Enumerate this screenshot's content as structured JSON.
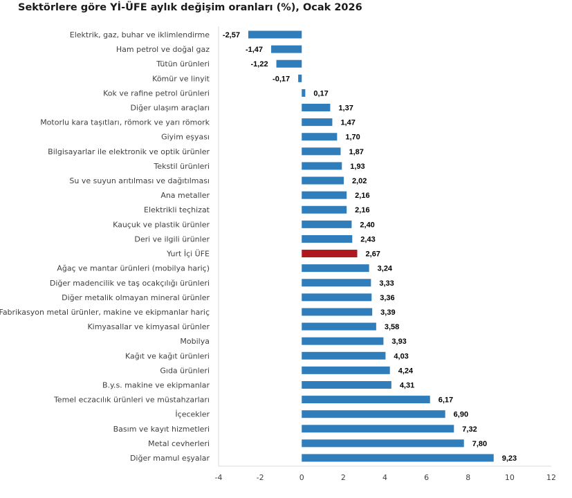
{
  "chart_data": {
    "type": "bar",
    "orientation": "horizontal",
    "title": "Sektörlere göre Yİ-ÜFE aylık değişim oranları (%), Ocak 2026",
    "xlabel": "",
    "ylabel": "",
    "xlim": [
      -4,
      12
    ],
    "xticks": [
      "-4",
      "-2",
      "0",
      "2",
      "4",
      "6",
      "8",
      "10",
      "12"
    ],
    "xtick_values": [
      -4,
      -2,
      0,
      2,
      4,
      6,
      8,
      10,
      12
    ],
    "grid": false,
    "legend": "none",
    "colors": {
      "default": "#2f7dba",
      "highlight": "#b01820"
    },
    "highlight_category": "Yurt İçi ÜFE",
    "categories": [
      "Elektrik, gaz, buhar ve iklimlendirme",
      "Ham petrol ve doğal gaz",
      "Tütün ürünleri",
      "Kömür ve linyit",
      "Kok ve rafine petrol ürünleri",
      "Diğer ulaşım araçları",
      "Motorlu kara taşıtları, römork ve yarı römork",
      "Giyim eşyası",
      "Bilgisayarlar ile elektronik ve optik ürünler",
      "Tekstil ürünleri",
      "Su ve suyun arıtılması ve dağıtılması",
      "Ana metaller",
      "Elektrikli teçhizat",
      "Kauçuk ve plastik ürünler",
      "Deri ve ilgili ürünler",
      "Yurt İçi ÜFE",
      "Ağaç ve mantar ürünleri (mobilya hariç)",
      "Diğer madencilik ve taş ocakçılığı ürünleri",
      "Diğer metalik olmayan mineral ürünler",
      "Fabrikasyon metal ürünler, makine ve ekipmanlar hariç",
      "Kimyasallar ve kimyasal ürünler",
      "Mobilya",
      "Kağıt ve kağıt ürünleri",
      "Gıda ürünleri",
      "B.y.s. makine ve ekipmanlar",
      "Temel eczacılık ürünleri ve müstahzarları",
      "İçecekler",
      "Basım ve kayıt hizmetleri",
      "Metal cevherleri",
      "Diğer mamul eşyalar"
    ],
    "values": [
      -2.57,
      -1.47,
      -1.22,
      -0.17,
      0.17,
      1.37,
      1.47,
      1.7,
      1.87,
      1.93,
      2.02,
      2.16,
      2.16,
      2.4,
      2.43,
      2.67,
      3.24,
      3.33,
      3.36,
      3.39,
      3.58,
      3.93,
      4.03,
      4.24,
      4.31,
      6.17,
      6.9,
      7.32,
      7.8,
      9.23
    ],
    "value_labels": [
      "-2,57",
      "-1,47",
      "-1,22",
      "-0,17",
      "0,17",
      "1,37",
      "1,47",
      "1,70",
      "1,87",
      "1,93",
      "2,02",
      "2,16",
      "2,16",
      "2,40",
      "2,43",
      "2,67",
      "3,24",
      "3,33",
      "3,36",
      "3,39",
      "3,58",
      "3,93",
      "4,03",
      "4,24",
      "4,31",
      "6,17",
      "6,90",
      "7,32",
      "7,80",
      "9,23"
    ]
  }
}
